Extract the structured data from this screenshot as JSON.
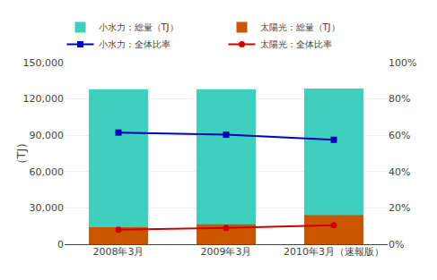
{
  "chart_data": {
    "type": "bar",
    "categories": [
      "2008年3月",
      "2009年3月",
      "2010年3月（速報版）"
    ],
    "series": [
      {
        "name": "小水力：総量（TJ）",
        "type": "bar",
        "color": "#3ECFBF",
        "values": [
          128000,
          128000,
          128500
        ]
      },
      {
        "name": "太陽光：総量（TJ）",
        "type": "bar",
        "color": "#CC5500",
        "values": [
          14000,
          16500,
          24000
        ]
      },
      {
        "name": "小水力：全体比率",
        "type": "line",
        "axis": "y2",
        "color": "#0000BB",
        "marker": "square",
        "values": [
          61.5,
          60.3,
          57.5
        ]
      },
      {
        "name": "太陽光：全体比率",
        "type": "line",
        "axis": "y2",
        "color": "#CC0000",
        "marker": "circle",
        "values": [
          8.0,
          9.0,
          10.5
        ]
      }
    ],
    "ylabel": "（TJ）",
    "ylim": [
      0,
      150000
    ],
    "yticks": [
      0,
      {
        "value": 30000,
        "label": "30,000"
      },
      {
        "value": 60000,
        "label": "60,000"
      },
      {
        "value": 90000,
        "label": "90,000"
      },
      {
        "value": 120000,
        "label": "120,000"
      },
      {
        "value": 150000,
        "label": "150,000"
      }
    ],
    "y2lim": [
      0,
      100
    ],
    "y2ticks": [
      {
        "value": 0,
        "label": "0%"
      },
      {
        "value": 20,
        "label": "20%"
      },
      {
        "value": 40,
        "label": "40%"
      },
      {
        "value": 60,
        "label": "60%"
      },
      {
        "value": 80,
        "label": "80%"
      },
      {
        "value": 100,
        "label": "100%"
      }
    ],
    "grid": true,
    "legend": "top"
  }
}
